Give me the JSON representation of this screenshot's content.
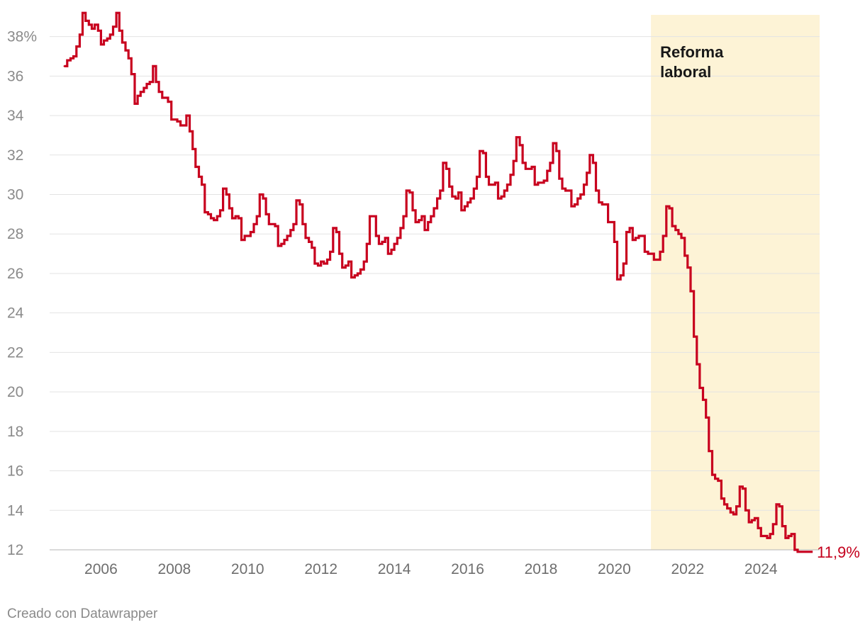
{
  "chart_data": {
    "type": "line",
    "step": true,
    "unit": "%",
    "xlim": [
      2004.6,
      2025.6
    ],
    "ylim": [
      12,
      39.1
    ],
    "ytick_values": [
      12,
      14,
      16,
      18,
      20,
      22,
      24,
      26,
      28,
      30,
      32,
      34,
      36,
      38
    ],
    "ytick_labels": [
      "12",
      "14",
      "16",
      "18",
      "20",
      "22",
      "24",
      "26",
      "28",
      "30",
      "32",
      "34",
      "36",
      "38%"
    ],
    "xtick_values": [
      2006,
      2008,
      2010,
      2012,
      2014,
      2016,
      2018,
      2020,
      2022,
      2024
    ],
    "xtick_labels": [
      "2006",
      "2008",
      "2010",
      "2012",
      "2014",
      "2016",
      "2018",
      "2020",
      "2022",
      "2024"
    ],
    "grid": true,
    "line_color": "#c8001e",
    "band_color": "#fdf3d6",
    "annotation": {
      "label_lines": [
        "Reforma",
        "laboral"
      ],
      "x_start": 2021.0,
      "x_end": 2025.6
    },
    "end_label": "11,9%",
    "series": [
      {
        "x": [
          2005.0,
          2005.08,
          2005.17,
          2005.25,
          2005.33,
          2005.42,
          2005.5,
          2005.58,
          2005.67,
          2005.75,
          2005.83,
          2005.92,
          2006.0,
          2006.08,
          2006.17,
          2006.25,
          2006.33,
          2006.42,
          2006.5,
          2006.58,
          2006.67,
          2006.75,
          2006.83,
          2006.92,
          2007.0,
          2007.08,
          2007.17,
          2007.25,
          2007.33,
          2007.42,
          2007.5,
          2007.58,
          2007.67,
          2007.75,
          2007.83,
          2007.92,
          2008.0,
          2008.08,
          2008.17,
          2008.25,
          2008.33,
          2008.42,
          2008.5,
          2008.58,
          2008.67,
          2008.75,
          2008.83,
          2008.92,
          2009.0,
          2009.08,
          2009.17,
          2009.25,
          2009.33,
          2009.42,
          2009.5,
          2009.58,
          2009.67,
          2009.75,
          2009.83,
          2009.92,
          2010.0,
          2010.08,
          2010.17,
          2010.25,
          2010.33,
          2010.42,
          2010.5,
          2010.58,
          2010.67,
          2010.75,
          2010.83,
          2010.92,
          2011.0,
          2011.08,
          2011.17,
          2011.25,
          2011.33,
          2011.42,
          2011.5,
          2011.58,
          2011.67,
          2011.75,
          2011.83,
          2011.92,
          2012.0,
          2012.08,
          2012.17,
          2012.25,
          2012.33,
          2012.42,
          2012.5,
          2012.58,
          2012.67,
          2012.75,
          2012.83,
          2012.92,
          2013.0,
          2013.08,
          2013.17,
          2013.25,
          2013.33,
          2013.42,
          2013.5,
          2013.58,
          2013.67,
          2013.75,
          2013.83,
          2013.92,
          2014.0,
          2014.08,
          2014.17,
          2014.25,
          2014.33,
          2014.42,
          2014.5,
          2014.58,
          2014.67,
          2014.75,
          2014.83,
          2014.92,
          2015.0,
          2015.08,
          2015.17,
          2015.25,
          2015.33,
          2015.42,
          2015.5,
          2015.58,
          2015.67,
          2015.75,
          2015.83,
          2015.92,
          2016.0,
          2016.08,
          2016.17,
          2016.25,
          2016.33,
          2016.42,
          2016.5,
          2016.58,
          2016.67,
          2016.75,
          2016.83,
          2016.92,
          2017.0,
          2017.08,
          2017.17,
          2017.25,
          2017.33,
          2017.42,
          2017.5,
          2017.58,
          2017.67,
          2017.75,
          2017.83,
          2017.92,
          2018.0,
          2018.08,
          2018.17,
          2018.25,
          2018.33,
          2018.42,
          2018.5,
          2018.58,
          2018.67,
          2018.75,
          2018.83,
          2018.92,
          2019.0,
          2019.08,
          2019.17,
          2019.25,
          2019.33,
          2019.42,
          2019.5,
          2019.58,
          2019.67,
          2019.75,
          2019.83,
          2019.92,
          2020.0,
          2020.08,
          2020.17,
          2020.25,
          2020.33,
          2020.42,
          2020.5,
          2020.58,
          2020.67,
          2020.75,
          2020.83,
          2020.92,
          2021.0,
          2021.08,
          2021.17,
          2021.25,
          2021.33,
          2021.42,
          2021.5,
          2021.58,
          2021.67,
          2021.75,
          2021.83,
          2021.92,
          2022.0,
          2022.08,
          2022.17,
          2022.25,
          2022.33,
          2022.42,
          2022.5,
          2022.58,
          2022.67,
          2022.75,
          2022.83,
          2022.92,
          2023.0,
          2023.08,
          2023.17,
          2023.25,
          2023.33,
          2023.42,
          2023.5,
          2023.58,
          2023.67,
          2023.75,
          2023.83,
          2023.92,
          2024.0,
          2024.08,
          2024.17,
          2024.25,
          2024.33,
          2024.42,
          2024.5,
          2024.58,
          2024.67,
          2024.75,
          2024.83,
          2024.92,
          2025.0,
          2025.08,
          2025.17,
          2025.25,
          2025.33
        ],
        "y": [
          36.5,
          36.8,
          36.9,
          37.0,
          37.5,
          38.1,
          39.2,
          38.8,
          38.6,
          38.4,
          38.6,
          38.3,
          37.6,
          37.8,
          37.9,
          38.1,
          38.5,
          39.2,
          38.3,
          37.7,
          37.3,
          36.9,
          36.1,
          34.6,
          35.0,
          35.2,
          35.4,
          35.6,
          35.7,
          36.5,
          35.7,
          35.2,
          34.9,
          34.9,
          34.7,
          33.8,
          33.8,
          33.7,
          33.5,
          33.5,
          34.0,
          33.2,
          32.3,
          31.4,
          30.9,
          30.5,
          29.1,
          29.0,
          28.8,
          28.7,
          28.9,
          29.2,
          30.3,
          30.0,
          29.3,
          28.8,
          28.9,
          28.8,
          27.7,
          27.9,
          27.9,
          28.1,
          28.5,
          28.9,
          30.0,
          29.8,
          29.0,
          28.5,
          28.5,
          28.4,
          27.4,
          27.5,
          27.7,
          27.9,
          28.2,
          28.5,
          29.7,
          29.5,
          28.5,
          27.8,
          27.6,
          27.3,
          26.5,
          26.4,
          26.6,
          26.5,
          26.7,
          27.1,
          28.3,
          28.1,
          27.0,
          26.3,
          26.4,
          26.6,
          25.8,
          25.9,
          26.0,
          26.2,
          26.6,
          27.5,
          28.9,
          28.9,
          27.9,
          27.5,
          27.6,
          27.8,
          27.0,
          27.2,
          27.5,
          27.8,
          28.3,
          28.9,
          30.2,
          30.1,
          29.2,
          28.6,
          28.7,
          28.9,
          28.2,
          28.6,
          28.9,
          29.3,
          29.8,
          30.2,
          31.6,
          31.3,
          30.4,
          29.9,
          29.8,
          30.1,
          29.2,
          29.4,
          29.6,
          29.8,
          30.3,
          30.9,
          32.2,
          32.1,
          30.9,
          30.5,
          30.5,
          30.6,
          29.8,
          29.9,
          30.2,
          30.5,
          31.0,
          31.7,
          32.9,
          32.5,
          31.6,
          31.3,
          31.3,
          31.4,
          30.5,
          30.6,
          30.6,
          30.7,
          31.2,
          31.6,
          32.6,
          32.2,
          30.8,
          30.3,
          30.2,
          30.2,
          29.4,
          29.5,
          29.8,
          30.0,
          30.5,
          31.1,
          32.0,
          31.6,
          30.2,
          29.6,
          29.5,
          29.5,
          28.6,
          28.6,
          27.6,
          25.7,
          25.9,
          26.5,
          28.1,
          28.3,
          27.7,
          27.8,
          27.9,
          27.9,
          27.1,
          27.0,
          27.0,
          26.7,
          26.7,
          27.1,
          27.9,
          29.4,
          29.3,
          28.4,
          28.2,
          28.0,
          27.8,
          26.9,
          26.3,
          25.1,
          22.8,
          21.4,
          20.2,
          19.6,
          18.7,
          17.0,
          15.8,
          15.6,
          15.5,
          14.6,
          14.3,
          14.1,
          13.9,
          13.8,
          14.2,
          15.2,
          15.1,
          14.0,
          13.4,
          13.5,
          13.6,
          13.1,
          12.7,
          12.7,
          12.6,
          12.8,
          13.3,
          14.3,
          14.2,
          13.2,
          12.6,
          12.7,
          12.8,
          12.0,
          11.9,
          11.9,
          11.9,
          11.9,
          11.9
        ]
      }
    ]
  },
  "credit": "Creado con Datawrapper"
}
